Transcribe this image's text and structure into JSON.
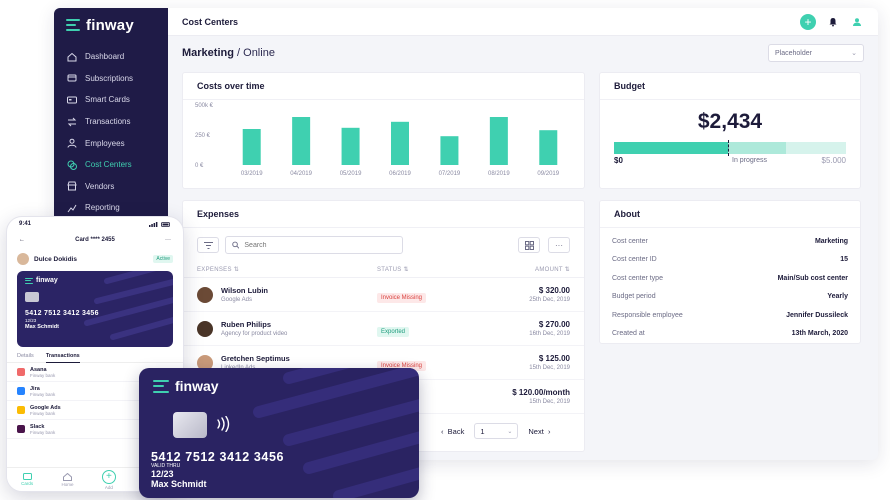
{
  "app": {
    "brand": "finway"
  },
  "sidebar": {
    "items": [
      {
        "label": "Dashboard",
        "icon": "home-icon",
        "active": false
      },
      {
        "label": "Subscriptions",
        "icon": "subscriptions-icon",
        "active": false
      },
      {
        "label": "Smart Cards",
        "icon": "card-icon",
        "active": false
      },
      {
        "label": "Transactions",
        "icon": "transactions-icon",
        "active": false
      },
      {
        "label": "Employees",
        "icon": "user-icon",
        "active": false
      },
      {
        "label": "Cost Centers",
        "icon": "cost-centers-icon",
        "active": true
      },
      {
        "label": "Vendors",
        "icon": "vendors-icon",
        "active": false
      },
      {
        "label": "Reporting",
        "icon": "reporting-icon",
        "active": false
      }
    ]
  },
  "topbar": {
    "title": "Cost Centers"
  },
  "page": {
    "title_bold": "Marketing",
    "title_rest": " / Online",
    "select_placeholder": "Placeholder"
  },
  "chart_data": {
    "type": "bar",
    "title": "Costs over time",
    "categories": [
      "03/2019",
      "04/2019",
      "05/2019",
      "06/2019",
      "07/2019",
      "08/2019",
      "09/2019"
    ],
    "values": [
      300,
      400,
      310,
      360,
      240,
      400,
      290
    ],
    "yticks": [
      "500k €",
      "250 €",
      "0 €"
    ],
    "ylim": [
      0,
      500
    ],
    "color": "#3fd0b0"
  },
  "budget": {
    "title": "Budget",
    "amount": "$2,434",
    "start": "$0",
    "middle": "In progress",
    "end": "$5.000",
    "spent_fraction": 0.49,
    "progress_fraction": 0.74
  },
  "expenses": {
    "title": "Expenses",
    "search_placeholder": "Search",
    "columns": {
      "expenses": "EXPENSES ⇅",
      "status": "STATUS ⇅",
      "amount": "AMOUNT ⇅"
    },
    "rows": [
      {
        "name": "Wilson Lubin",
        "sub": "Google Ads",
        "status": "Invoice Missing",
        "status_type": "missing",
        "amount": "$ 320.00",
        "date": "25th Dec, 2019",
        "avatar": "#6b4a36"
      },
      {
        "name": "Ruben Philips",
        "sub": "Agency for product video",
        "status": "Exported",
        "status_type": "exported",
        "amount": "$ 270.00",
        "date": "16th Dec, 2019",
        "avatar": "#4a3528"
      },
      {
        "name": "Gretchen Septimus",
        "sub": "LinkedIn Ads",
        "status": "Invoice Missing",
        "status_type": "missing",
        "amount": "$ 125.00",
        "date": "15th Dec, 2019",
        "avatar": "#c99a7a"
      },
      {
        "name": "",
        "sub": "",
        "status": "",
        "status_type": "",
        "amount": "$ 120.00/month",
        "date": "15th Dec, 2019",
        "avatar": "#ffffff"
      }
    ],
    "pager": {
      "back": "Back",
      "page": "1",
      "next": "Next"
    }
  },
  "about": {
    "title": "About",
    "rows": [
      {
        "k": "Cost center",
        "v": "Marketing"
      },
      {
        "k": "Cost center ID",
        "v": "15"
      },
      {
        "k": "Cost center type",
        "v": "Main/Sub cost center"
      },
      {
        "k": "Budget period",
        "v": "Yearly"
      },
      {
        "k": "Responsible employee",
        "v": "Jennifer Dussileck"
      },
      {
        "k": "Created at",
        "v": "13th March, 2020"
      }
    ]
  },
  "phone": {
    "time": "9:41",
    "header": "Card **** 2455",
    "user": "Dulce Dokidis",
    "user_tag": "Active",
    "card_brand": "finway",
    "card_number": "5412 7512 3412 3456",
    "card_expiry": "12/23",
    "card_holder": "Max Schmidt",
    "tabs": [
      "Details",
      "Transactions"
    ],
    "transactions": [
      {
        "name": "Asana",
        "sub": "Finway bank",
        "color": "#f06a6a"
      },
      {
        "name": "Jira",
        "sub": "Finway bank",
        "color": "#2684ff"
      },
      {
        "name": "Google Ads",
        "sub": "Finway bank",
        "color": "#fbbc04"
      },
      {
        "name": "Slack",
        "sub": "Finway bank",
        "color": "#4a154b"
      }
    ],
    "nav": [
      "Cards",
      "Home",
      "Add",
      "Notifications"
    ]
  },
  "bigcard": {
    "brand": "finway",
    "number": "5412 7512 3412 3456",
    "valid_label": "VALID THRU",
    "expiry": "12/23",
    "holder": "Max Schmidt"
  }
}
